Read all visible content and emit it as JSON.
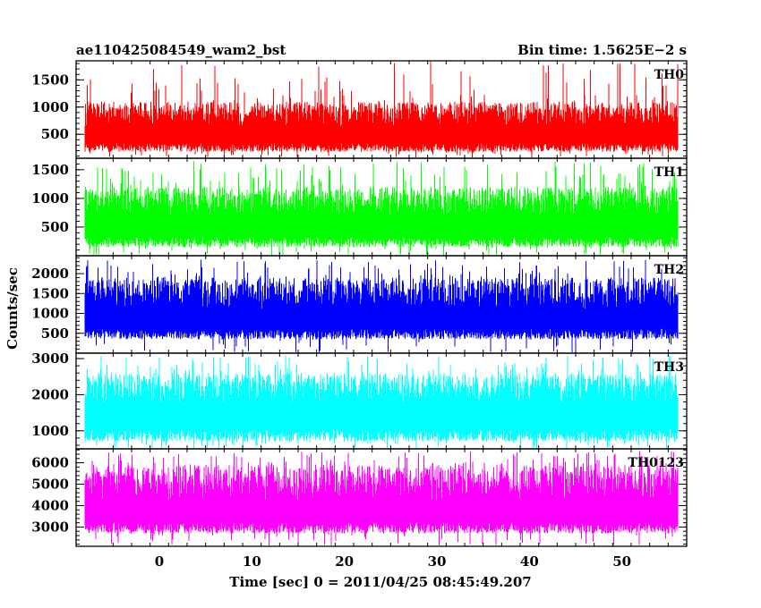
{
  "header": {
    "left_title": "ae110425084549_wam2_bst",
    "right_title": "Bin time: 1.5625E−2 s"
  },
  "chart_data": {
    "type": "line",
    "xlabel": "Time [sec] 0 = 2011/04/25 08:45:49.207",
    "ylabel": "Counts/sec",
    "xlim": [
      -9,
      57
    ],
    "x_data_range": [
      -8,
      56
    ],
    "bin_time_s": 0.015625,
    "x_ticks": [
      0,
      10,
      20,
      30,
      40,
      50
    ],
    "grid": false,
    "panels": [
      {
        "name": "TH0",
        "color": "#ff0000",
        "ylim": [
          60,
          1850
        ],
        "y_ticks": [
          500,
          1000,
          1500
        ],
        "typical_range": [
          180,
          1100
        ],
        "peak_range": [
          1100,
          1850
        ],
        "mean": 640
      },
      {
        "name": "TH1",
        "color": "#00ff00",
        "ylim": [
          0,
          1700
        ],
        "y_ticks": [
          500,
          1000,
          1500
        ],
        "typical_range": [
          150,
          1200
        ],
        "peak_range": [
          1200,
          1650
        ],
        "mean": 700
      },
      {
        "name": "TH2",
        "color": "#0000ff",
        "ylim": [
          0,
          2450
        ],
        "y_ticks": [
          500,
          1000,
          1500,
          2000
        ],
        "typical_range": [
          350,
          1900
        ],
        "peak_range": [
          1900,
          2350
        ],
        "mean": 1100
      },
      {
        "name": "TH3",
        "color": "#00ffff",
        "ylim": [
          500,
          3150
        ],
        "y_ticks": [
          1000,
          2000,
          3000
        ],
        "typical_range": [
          700,
          2600
        ],
        "peak_range": [
          2600,
          3100
        ],
        "mean": 1750
      },
      {
        "name": "TH0123",
        "color": "#ff00ff",
        "ylim": [
          2100,
          6650
        ],
        "y_ticks": [
          3000,
          4000,
          5000,
          6000
        ],
        "typical_range": [
          2700,
          5900
        ],
        "peak_range": [
          5900,
          6550
        ],
        "mean": 4200
      }
    ]
  }
}
